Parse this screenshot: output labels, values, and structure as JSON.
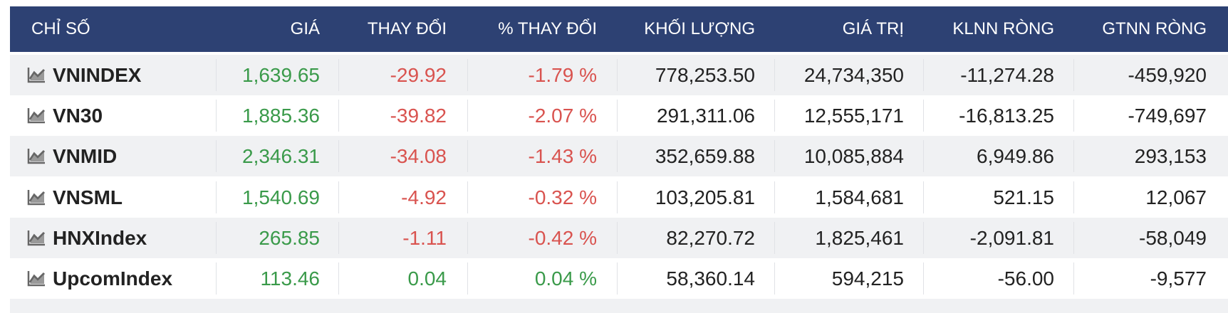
{
  "table": {
    "header": [
      "CHỈ SỐ",
      "GIÁ",
      "THAY ĐỔI",
      "% THAY ĐỔI",
      "KHỐI LƯỢNG",
      "GIÁ TRỊ",
      "KLNN RÒNG",
      "GTNN RÒNG"
    ],
    "rows": [
      [
        "VNINDEX",
        "1,639.65",
        "-29.92",
        "-1.79 %",
        "778,253.50",
        "24,734,350",
        "-11,274.28",
        "-459,920"
      ],
      [
        "VN30",
        "1,885.36",
        "-39.82",
        "-2.07 %",
        "291,311.06",
        "12,555,171",
        "-16,813.25",
        "-749,697"
      ],
      [
        "VNMID",
        "2,346.31",
        "-34.08",
        "-1.43 %",
        "352,659.88",
        "10,085,884",
        "6,949.86",
        "293,153"
      ],
      [
        "VNSML",
        "1,540.69",
        "-4.92",
        "-0.32 %",
        "103,205.81",
        "1,584,681",
        "521.15",
        "12,067"
      ],
      [
        "HNXIndex",
        "265.85",
        "-1.11",
        "-0.42 %",
        "82,270.72",
        "1,825,461",
        "-2,091.81",
        "-58,049"
      ],
      [
        "UpcomIndex",
        "113.46",
        "0.04",
        "0.04 %",
        "58,360.14",
        "594,215",
        "-56.00",
        "-9,577"
      ]
    ]
  }
}
